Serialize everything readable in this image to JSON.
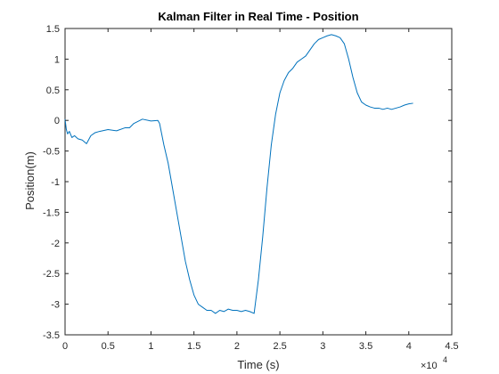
{
  "chart_data": {
    "type": "line",
    "title": "Kalman Filter in Real Time - Position",
    "xlabel": "Time (s)",
    "ylabel": "Position(m)",
    "x_exponent_label": "×10",
    "x_exponent_power": "4",
    "xlim": [
      0,
      45000
    ],
    "ylim": [
      -3.5,
      1.5
    ],
    "x_ticks": [
      0,
      5000,
      10000,
      15000,
      20000,
      25000,
      30000,
      35000,
      40000,
      45000
    ],
    "x_tick_labels": [
      "0",
      "0.5",
      "1",
      "1.5",
      "2",
      "2.5",
      "3",
      "3.5",
      "4",
      "4.5"
    ],
    "y_ticks": [
      -3.5,
      -3,
      -2.5,
      -2,
      -1.5,
      -1,
      -0.5,
      0,
      0.5,
      1,
      1.5
    ],
    "y_tick_labels": [
      "-3.5",
      "-3",
      "-2.5",
      "-2",
      "-1.5",
      "-1",
      "-0.5",
      "0",
      "0.5",
      "1",
      "1.5"
    ],
    "grid": false,
    "line_color": "#0072BD",
    "series": [
      {
        "x": [
          0,
          150,
          300,
          500,
          800,
          1100,
          1500,
          2000,
          2500,
          3000,
          3500,
          4000,
          5000,
          6000,
          7000,
          7500,
          8000,
          9000,
          10000,
          10800,
          11000,
          11500,
          12000,
          12500,
          13000,
          13500,
          14000,
          14500,
          15000,
          15500,
          16000,
          16500,
          17000,
          17500,
          18000,
          18500,
          19000,
          19500,
          20000,
          20500,
          21000,
          21500,
          22000,
          22500,
          23000,
          23500,
          24000,
          24500,
          25000,
          25500,
          26000,
          26500,
          27000,
          27500,
          28000,
          28500,
          29000,
          29500,
          30000,
          30500,
          31000,
          31500,
          32000,
          32500,
          33000,
          33500,
          34000,
          34500,
          35000,
          35500,
          36000,
          36500,
          37000,
          37500,
          38000,
          38500,
          39000,
          39500,
          40000,
          40500
        ],
        "y": [
          0.02,
          -0.15,
          -0.22,
          -0.18,
          -0.28,
          -0.25,
          -0.3,
          -0.32,
          -0.38,
          -0.25,
          -0.2,
          -0.18,
          -0.15,
          -0.17,
          -0.12,
          -0.12,
          -0.05,
          0.02,
          -0.01,
          0.0,
          -0.05,
          -0.4,
          -0.7,
          -1.1,
          -1.5,
          -1.9,
          -2.3,
          -2.6,
          -2.85,
          -3.0,
          -3.05,
          -3.1,
          -3.1,
          -3.15,
          -3.1,
          -3.12,
          -3.08,
          -3.1,
          -3.1,
          -3.12,
          -3.1,
          -3.12,
          -3.15,
          -2.6,
          -1.9,
          -1.1,
          -0.4,
          0.1,
          0.45,
          0.65,
          0.78,
          0.85,
          0.95,
          1.0,
          1.05,
          1.15,
          1.25,
          1.32,
          1.35,
          1.38,
          1.4,
          1.38,
          1.35,
          1.25,
          1.0,
          0.7,
          0.45,
          0.3,
          0.25,
          0.22,
          0.2,
          0.2,
          0.18,
          0.2,
          0.18,
          0.2,
          0.22,
          0.25,
          0.27,
          0.28
        ]
      }
    ]
  }
}
